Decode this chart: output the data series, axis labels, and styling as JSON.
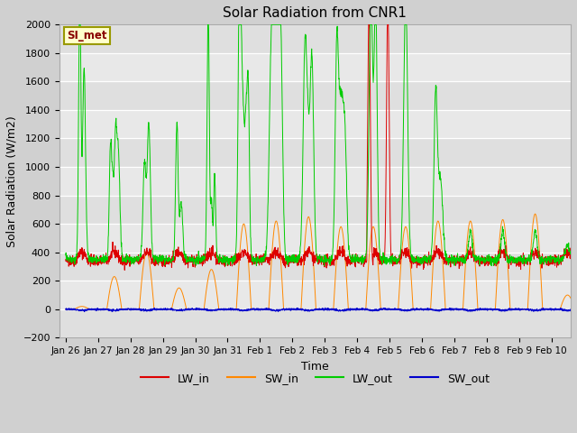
{
  "title": "Solar Radiation from CNR1",
  "xlabel": "Time",
  "ylabel": "Solar Radiation (W/m2)",
  "ylim": [
    -200,
    2000
  ],
  "yticks": [
    -200,
    0,
    200,
    400,
    600,
    800,
    1000,
    1200,
    1400,
    1600,
    1800,
    2000
  ],
  "annotation_text": "SI_met",
  "annotation_bg": "#ffffcc",
  "annotation_border": "#999900",
  "annotation_text_color": "#880000",
  "line_colors": [
    "#dd0000",
    "#ff8800",
    "#00cc00",
    "#0000cc"
  ],
  "legend_labels": [
    "LW_in",
    "SW_in",
    "LW_out",
    "SW_out"
  ],
  "fig_bg": "#d0d0d0",
  "axes_bg": "#e8e8e8",
  "xtick_labels": [
    "Jan 26",
    "Jan 27",
    "Jan 28",
    "Jan 29",
    "Jan 30",
    "Jan 31",
    "Feb 1",
    "Feb 2",
    "Feb 3",
    "Feb 4",
    "Feb 5",
    "Feb 6",
    "Feb 7",
    "Feb 8",
    "Feb 9",
    "Feb 10"
  ],
  "n_days": 16,
  "lw_in_base": 340,
  "lw_out_base": 350,
  "sw_out_base": -10
}
